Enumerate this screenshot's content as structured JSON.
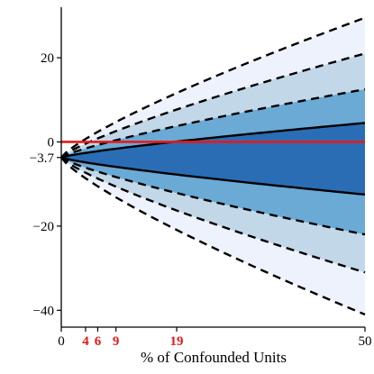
{
  "chart_data": {
    "type": "area",
    "xlabel": "% of Confounded Units",
    "ylabel": "",
    "xlim": [
      0,
      50
    ],
    "ylim": [
      -44,
      32
    ],
    "x_ticks": [
      0,
      50
    ],
    "y_ticks": [
      -40,
      -20,
      0,
      20
    ],
    "highlight_x_ticks": [
      4,
      6,
      9,
      19
    ],
    "y_annotation": "-3.7",
    "x": [
      0,
      50
    ],
    "start_value": -3.7,
    "bands": [
      {
        "outer": true,
        "lower": [
          -3.7,
          -41
        ],
        "upper": [
          -3.7,
          29.5
        ],
        "color": "#eef2fd"
      },
      {
        "outer": false,
        "lower": [
          -3.7,
          -31
        ],
        "upper": [
          -3.7,
          21
        ],
        "color": "#c2d8e8"
      },
      {
        "outer": false,
        "lower": [
          -3.7,
          -22
        ],
        "upper": [
          -3.7,
          12.5
        ],
        "color": "#6aaad5"
      },
      {
        "outer": false,
        "lower": [
          -3.7,
          -12.5
        ],
        "upper": [
          -3.7,
          4.5
        ],
        "color": "#2a6db5"
      }
    ],
    "dashed_lines": [
      29.5,
      21,
      12.5,
      -22,
      -31,
      -41
    ],
    "solid_lines": [
      4.5,
      -12.5
    ],
    "reference_line": {
      "y": 0,
      "color": "#e41a1c"
    },
    "colors": {
      "label_highlight": "#e41a1c",
      "axis": "#000000"
    }
  }
}
